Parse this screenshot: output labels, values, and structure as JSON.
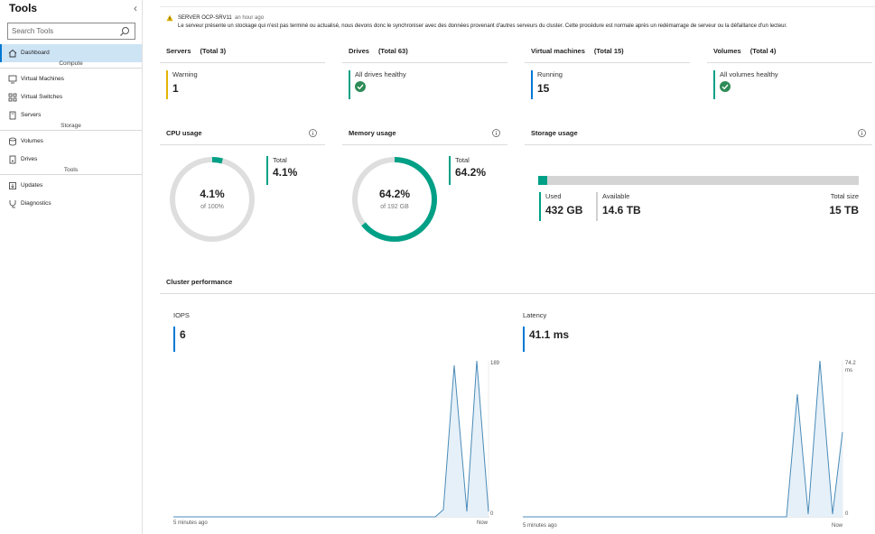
{
  "sidebar": {
    "title": "Tools",
    "search_placeholder": "Search Tools",
    "items": [
      {
        "label": "Dashboard",
        "icon": "home-icon"
      },
      {
        "label": "Virtual Machines",
        "icon": "vm-icon"
      },
      {
        "label": "Virtual Switches",
        "icon": "switch-icon"
      },
      {
        "label": "Servers",
        "icon": "server-icon"
      },
      {
        "label": "Volumes",
        "icon": "volume-icon"
      },
      {
        "label": "Drives",
        "icon": "drive-icon"
      },
      {
        "label": "Updates",
        "icon": "update-icon"
      },
      {
        "label": "Diagnostics",
        "icon": "diagnostics-icon"
      }
    ],
    "sections": {
      "compute": "Compute",
      "storage": "Storage",
      "tools": "Tools"
    }
  },
  "notification": {
    "server": "SERVER OCP-SRV11",
    "time": "an hour ago",
    "message": "Le serveur présente un stockage qui n'est pas terminé ou actualisé, nous devons donc le synchroniser avec des données provenant d'autres serveurs du cluster. Cette procédure est normale après un redémarrage de serveur ou la défaillance d'un lecteur."
  },
  "summary": {
    "servers": {
      "title": "Servers",
      "total": "(Total 3)",
      "status": "Warning",
      "value": "1"
    },
    "drives": {
      "title": "Drives",
      "total": "(Total 63)",
      "status": "All drives healthy"
    },
    "vms": {
      "title": "Virtual machines",
      "total": "(Total 15)",
      "status": "Running",
      "value": "15"
    },
    "volumes": {
      "title": "Volumes",
      "total": "(Total 4)",
      "status": "All volumes healthy"
    }
  },
  "cpu": {
    "title": "CPU usage",
    "percent": "4.1%",
    "of": "of 100%",
    "total_label": "Total",
    "total_value": "4.1%",
    "fraction": 0.041
  },
  "memory": {
    "title": "Memory usage",
    "percent": "64.2%",
    "of": "of 192 GB",
    "total_label": "Total",
    "total_value": "64.2%",
    "fraction": 0.642
  },
  "storage": {
    "title": "Storage usage",
    "used_label": "Used",
    "used_value": "432 GB",
    "available_label": "Available",
    "available_value": "14.6 TB",
    "total_label": "Total size",
    "total_value": "15 TB",
    "fraction": 0.028
  },
  "performance": {
    "title": "Cluster performance",
    "iops": {
      "label": "IOPS",
      "value": "6",
      "ymax": "189",
      "ymin": "0",
      "x_start": "5 minutes ago",
      "x_end": "Now"
    },
    "latency": {
      "label": "Latency",
      "value": "41.1 ms",
      "ymax": "74.2",
      "yunit": "ms",
      "ymin": "0",
      "x_start": "5 minutes ago",
      "x_end": "Now"
    }
  },
  "colors": {
    "accent": "#0078d4",
    "teal": "#00a086",
    "warning": "#e3b505",
    "ok": "#2e8b57",
    "line": "#4a8bb8"
  }
}
